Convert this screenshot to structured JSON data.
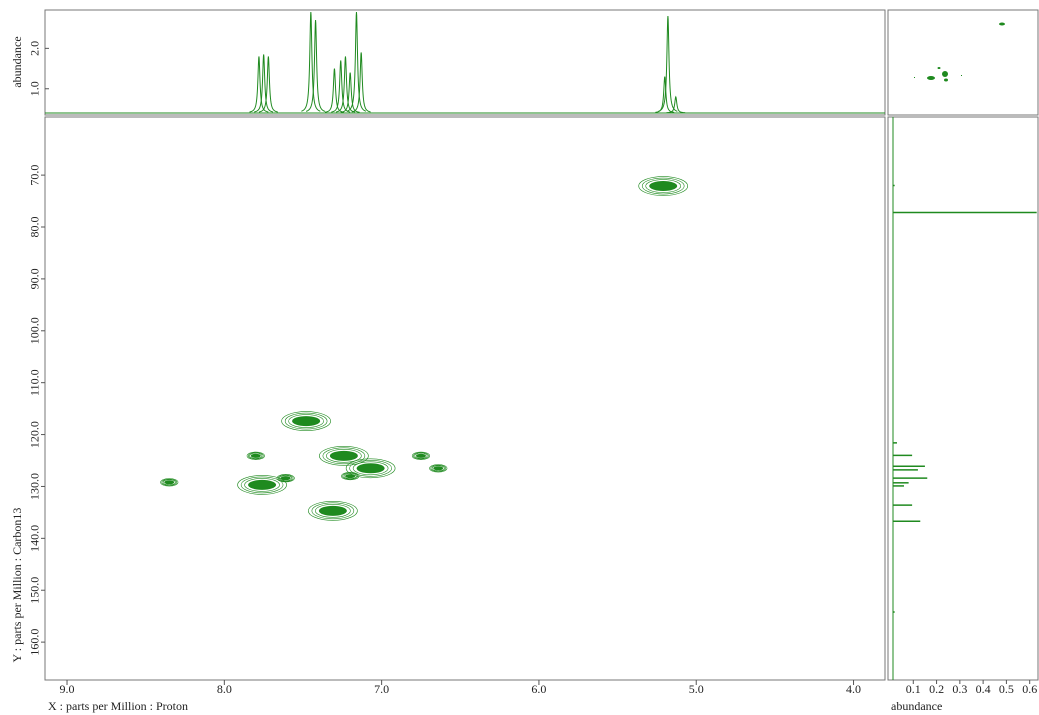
{
  "chart_data": [
    {
      "type": "spectrum",
      "ylabel": "abundance",
      "color": "#1f8a1f",
      "xlim": [
        9.14,
        3.8
      ],
      "ylim": [
        0.4,
        2.9
      ],
      "yticks": [
        {
          "value": 1,
          "label": "1.0"
        },
        {
          "value": 2,
          "label": "2.0"
        }
      ],
      "x": [
        7.78,
        7.75,
        7.72,
        7.45,
        7.42,
        7.3,
        7.26,
        7.23,
        7.2,
        7.16,
        7.13,
        5.2,
        5.18,
        5.13
      ],
      "values": [
        1.8,
        1.85,
        1.8,
        2.9,
        2.7,
        1.5,
        1.7,
        1.8,
        1.4,
        2.9,
        1.9,
        1.3,
        2.8,
        0.8
      ]
    },
    {
      "type": "contour",
      "xlabel": "X : parts per Million : Proton",
      "ylabel": "Y : parts per Million : Carbon13",
      "color": "#1f8a1f",
      "xlim": [
        9.14,
        3.8
      ],
      "ylim": [
        58.8,
        167.3
      ],
      "xticks": [
        {
          "value": 9,
          "label": "9.0"
        },
        {
          "value": 8,
          "label": "8.0"
        },
        {
          "value": 7,
          "label": "7.0"
        },
        {
          "value": 6,
          "label": "6.0"
        },
        {
          "value": 5,
          "label": "5.0"
        },
        {
          "value": 4,
          "label": "4.0"
        }
      ],
      "yticks": [
        {
          "value": 70,
          "label": "70.0"
        },
        {
          "value": 80,
          "label": "80.0"
        },
        {
          "value": 90,
          "label": "90.0"
        },
        {
          "value": 100,
          "label": "100.0"
        },
        {
          "value": 110,
          "label": "110.0"
        },
        {
          "value": 120,
          "label": "120.0"
        },
        {
          "value": 130,
          "label": "130.0"
        },
        {
          "value": 140,
          "label": "140.0"
        },
        {
          "value": 150,
          "label": "150.0"
        },
        {
          "value": 160,
          "label": "160.0"
        }
      ],
      "x": [
        5.21,
        7.48,
        7.24,
        7.07,
        7.2,
        7.76,
        7.61,
        7.31,
        6.64,
        6.75,
        8.35,
        7.8
      ],
      "values": [
        72.1,
        117.4,
        124.1,
        126.5,
        128.0,
        129.7,
        128.4,
        134.7,
        126.5,
        124.1,
        129.2,
        124.1
      ]
    },
    {
      "type": "projection",
      "xlabel": "abundance",
      "color": "#1f8a1f",
      "xlim": [
        0,
        0.64
      ],
      "ylim": [
        58.8,
        167.3
      ],
      "xticks": [
        0.1,
        0.2,
        0.3,
        0.4,
        0.5,
        0.6
      ],
      "x": [
        72.0,
        77.2,
        121.6,
        124.0,
        126.1,
        126.8,
        128.4,
        129.3,
        129.9,
        133.6,
        136.7,
        154.2
      ],
      "values": [
        0.02,
        0.63,
        0.03,
        0.095,
        0.15,
        0.12,
        0.16,
        0.08,
        0.06,
        0.095,
        0.13,
        0.02
      ]
    }
  ]
}
